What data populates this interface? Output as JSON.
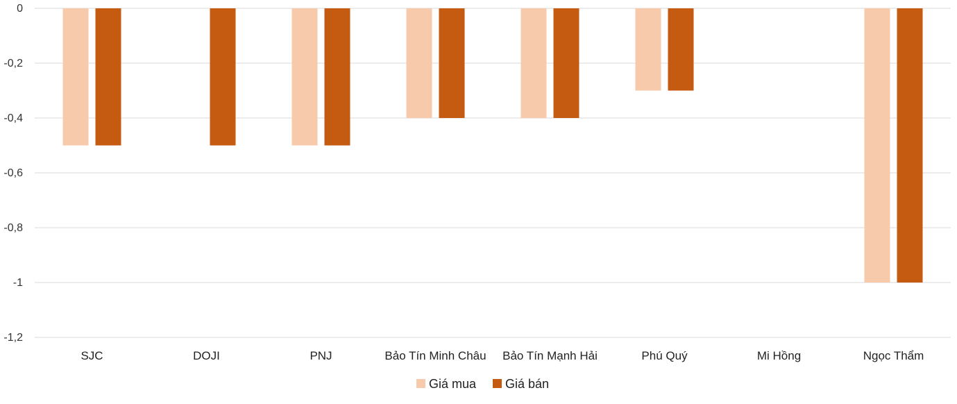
{
  "chart_data": {
    "type": "bar",
    "categories": [
      "SJC",
      "DOJI",
      "PNJ",
      "Bảo Tín Minh Châu",
      "Bảo Tín Mạnh Hải",
      "Phú Quý",
      "Mi Hồng",
      "Ngọc Thẩm"
    ],
    "series": [
      {
        "name": "Giá mua",
        "color": "#f7caac",
        "values": [
          -0.5,
          null,
          -0.5,
          -0.4,
          -0.4,
          -0.3,
          null,
          -1
        ]
      },
      {
        "name": "Giá bán",
        "color": "#c55a11",
        "values": [
          -0.5,
          -0.5,
          -0.5,
          -0.4,
          -0.4,
          -0.3,
          null,
          -1
        ]
      }
    ],
    "y_ticks": [
      {
        "value": 0,
        "label": "0"
      },
      {
        "value": -0.2,
        "label": "-0,2"
      },
      {
        "value": -0.4,
        "label": "-0,4"
      },
      {
        "value": -0.6,
        "label": "-0,6"
      },
      {
        "value": -0.8,
        "label": "-0,8"
      },
      {
        "value": -1,
        "label": "-1"
      },
      {
        "value": -1.2,
        "label": "-1,2"
      }
    ],
    "ylim": [
      -1.2,
      0
    ],
    "grid": true,
    "legend_position": "bottom",
    "title": "",
    "xlabel": "",
    "ylabel": ""
  }
}
